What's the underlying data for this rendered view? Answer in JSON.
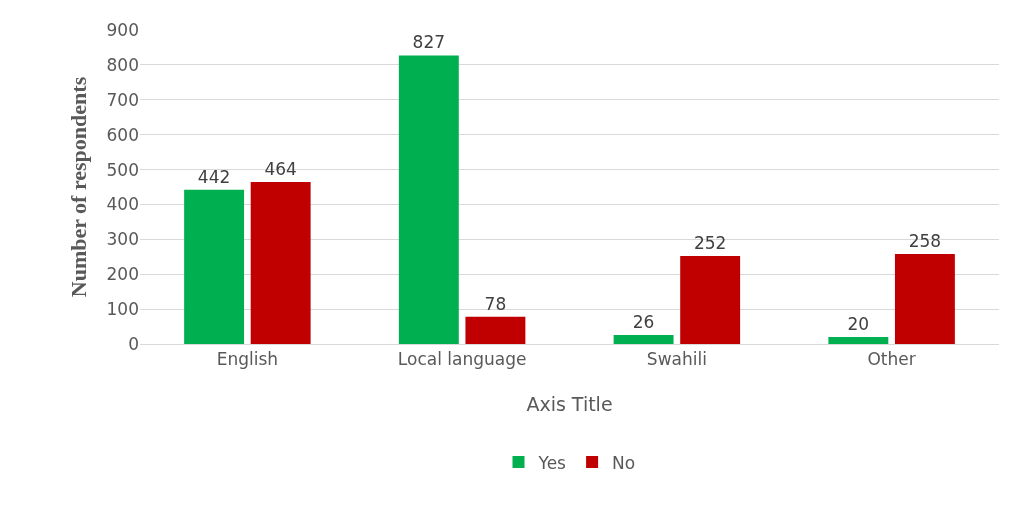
{
  "chart_data": {
    "type": "bar",
    "xlabel": "Axis Title",
    "ylabel": "Number of respondents",
    "categories": [
      "English",
      "Local language",
      "Swahili",
      "Other"
    ],
    "series": [
      {
        "name": "Yes",
        "color": "#00b050",
        "values": [
          442,
          827,
          26,
          20
        ]
      },
      {
        "name": "No",
        "color": "#c00000",
        "values": [
          464,
          78,
          252,
          258
        ]
      }
    ],
    "ylim": [
      0,
      900
    ],
    "yticks": [
      0,
      100,
      200,
      300,
      400,
      500,
      600,
      700,
      800,
      900
    ],
    "grid": "y",
    "legend": "bottom",
    "data_labels": true
  }
}
